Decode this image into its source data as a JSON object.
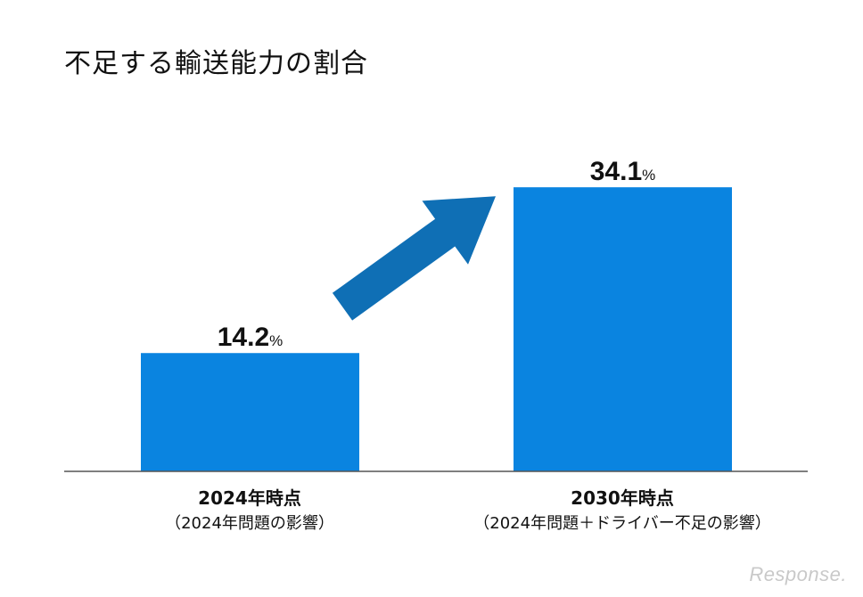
{
  "chart_data": {
    "type": "bar",
    "title": "不足する輸送能力の割合",
    "categories": [
      "2024年時点",
      "2030年時点"
    ],
    "subtitles": [
      "（2024年問題の影響）",
      "（2024年問題＋ドライバー不足の影響）"
    ],
    "values": [
      14.2,
      34.1
    ],
    "value_labels": [
      "14.2",
      "34.1"
    ],
    "unit": "%",
    "ylim": [
      0,
      40
    ],
    "grid": false,
    "bar_color": "#0a84e0",
    "arrow_color": "#0f6fb5"
  },
  "watermark": "Response."
}
